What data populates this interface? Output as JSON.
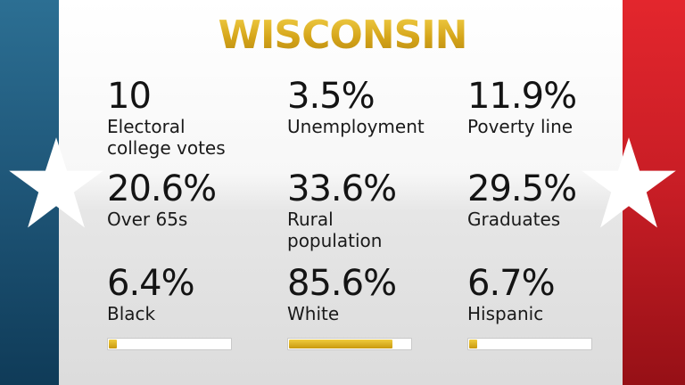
{
  "title": "WISCONSIN",
  "colors": {
    "accent_gold": "#d4a417",
    "flag_blue": "#1e5577",
    "flag_red": "#c71d25"
  },
  "icons": {
    "left_star": "star-icon",
    "right_star": "star-icon"
  },
  "stats": [
    {
      "value": "10",
      "label": "Electoral college votes"
    },
    {
      "value": "3.5%",
      "label": "Unemployment"
    },
    {
      "value": "11.9%",
      "label": "Poverty line"
    },
    {
      "value": "20.6%",
      "label": "Over 65s"
    },
    {
      "value": "33.6%",
      "label": "Rural population"
    },
    {
      "value": "29.5%",
      "label": "Graduates"
    },
    {
      "value": "6.4%",
      "label": "Black",
      "bar_fraction": 0.064
    },
    {
      "value": "85.6%",
      "label": "White",
      "bar_fraction": 0.856
    },
    {
      "value": "6.7%",
      "label": "Hispanic",
      "bar_fraction": 0.067
    }
  ]
}
